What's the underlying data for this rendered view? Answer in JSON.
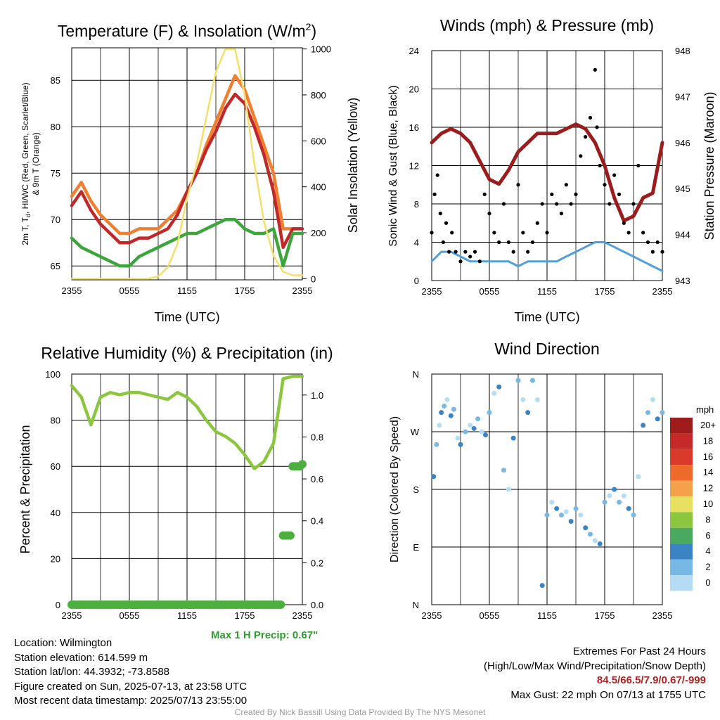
{
  "chart_data": [
    {
      "id": "temperature",
      "type": "line",
      "title": "Temperature (F) & Insolation (W/m",
      "title_sup": "2",
      "title_end": ")",
      "xlabel": "Time (UTC)",
      "ylabel_left_lines": [
        "2m T, T",
        "d",
        ", HI/WC (Red, Green, Scarlet/Blue)",
        "& 9m T (Orange)"
      ],
      "ylabel_right": "Solar Insolation (Yellow)",
      "xticks": [
        "2355",
        "0555",
        "1155",
        "1755",
        "2355"
      ],
      "ylim_left": [
        63.5,
        88.5
      ],
      "yticks_left": [
        65,
        70,
        75,
        80,
        85
      ],
      "ylim_right": [
        -5,
        1005
      ],
      "yticks_right": [
        0,
        200,
        400,
        600,
        800,
        1000
      ],
      "x_hours": [
        0,
        1,
        2,
        3,
        4,
        5,
        6,
        7,
        8,
        9,
        10,
        11,
        12,
        13,
        14,
        15,
        16,
        17,
        18,
        19,
        20,
        21,
        22,
        23,
        24
      ],
      "series": [
        {
          "color": "#f08030",
          "values": [
            72.5,
            74,
            72,
            70.5,
            69.5,
            68.5,
            68.5,
            69,
            69,
            69,
            70,
            71,
            73,
            75,
            78,
            80.5,
            83,
            85.5,
            84,
            81,
            78,
            75,
            69,
            69,
            69
          ]
        },
        {
          "color": "#c0282a",
          "values": [
            71.5,
            73,
            71,
            69.5,
            68.5,
            67.5,
            67.5,
            68,
            68,
            68.5,
            69,
            70.5,
            73,
            75,
            77.5,
            79.5,
            82,
            83.5,
            82.5,
            80,
            77,
            73,
            67,
            69,
            69
          ]
        },
        {
          "color": "#3ca63c",
          "values": [
            68,
            67,
            66.5,
            66,
            65.5,
            65,
            65,
            66,
            66.5,
            67,
            67.5,
            68,
            68.5,
            68.5,
            69,
            69.5,
            70,
            70,
            69,
            68.5,
            68.5,
            69,
            65,
            68.5,
            68.5
          ]
        },
        {
          "color": "#f5df6b",
          "values": [
            0,
            0,
            0,
            0,
            0,
            0,
            0,
            0,
            0,
            10,
            50,
            150,
            350,
            500,
            700,
            900,
            1000,
            1000,
            800,
            500,
            250,
            100,
            30,
            15,
            15
          ]
        }
      ]
    },
    {
      "id": "winds",
      "type": "scatter",
      "title": "Winds (mph) & Pressure (mb)",
      "xlabel": "Time (UTC)",
      "ylabel_left": "Sonic Wind & Gust (Blue, Black)",
      "ylabel_right": "Station Pressure (Maroon)",
      "xticks": [
        "2355",
        "0555",
        "1155",
        "1755",
        "2355"
      ],
      "ylim_left": [
        0,
        24
      ],
      "yticks_left": [
        0,
        4,
        8,
        12,
        16,
        20,
        24
      ],
      "ylim_right": [
        943,
        948
      ],
      "yticks_right": [
        943,
        944,
        945,
        946,
        947,
        948
      ],
      "x_hours": [
        0,
        1,
        2,
        3,
        4,
        5,
        6,
        7,
        8,
        9,
        10,
        11,
        12,
        13,
        14,
        15,
        16,
        17,
        18,
        19,
        20,
        21,
        22,
        23,
        24
      ],
      "series": [
        {
          "color": "#9b1c1c",
          "values": [
            946.0,
            946.2,
            946.3,
            946.2,
            946.0,
            945.6,
            945.2,
            945.1,
            945.4,
            945.8,
            946.0,
            946.2,
            946.2,
            946.2,
            946.3,
            946.4,
            946.3,
            946.0,
            945.5,
            944.8,
            944.3,
            944.4,
            944.8,
            944.9,
            946.0
          ]
        },
        {
          "color": "#4f9fd9",
          "values": [
            2,
            3,
            3,
            2.5,
            2,
            2,
            2,
            2,
            2,
            1.5,
            2,
            2,
            2,
            2,
            2.5,
            3,
            3.5,
            4,
            4,
            3.5,
            3,
            2.5,
            2,
            1.5,
            1
          ]
        }
      ],
      "gusts": [
        [
          0,
          5
        ],
        [
          0.3,
          9
        ],
        [
          0.6,
          11
        ],
        [
          0.9,
          7
        ],
        [
          1.2,
          4
        ],
        [
          1.5,
          6
        ],
        [
          1.8,
          3
        ],
        [
          2.1,
          5
        ],
        [
          2.5,
          3
        ],
        [
          3,
          2
        ],
        [
          3.5,
          3
        ],
        [
          4,
          2.5
        ],
        [
          4.5,
          3
        ],
        [
          5,
          2
        ],
        [
          5.5,
          9
        ],
        [
          6,
          7
        ],
        [
          6.5,
          5
        ],
        [
          7,
          4
        ],
        [
          7.5,
          8
        ],
        [
          8,
          4
        ],
        [
          8.5,
          3
        ],
        [
          9,
          10
        ],
        [
          9.5,
          5
        ],
        [
          10,
          3
        ],
        [
          10.5,
          4
        ],
        [
          11,
          6
        ],
        [
          11.5,
          8
        ],
        [
          12,
          5
        ],
        [
          12.5,
          9
        ],
        [
          13,
          8
        ],
        [
          13.5,
          7
        ],
        [
          14,
          10
        ],
        [
          14.5,
          8
        ],
        [
          15,
          9
        ],
        [
          15.5,
          13
        ],
        [
          16,
          15
        ],
        [
          16.5,
          17
        ],
        [
          17,
          22
        ],
        [
          17.2,
          16
        ],
        [
          17.5,
          12
        ],
        [
          18,
          10
        ],
        [
          18.5,
          8
        ],
        [
          19,
          11
        ],
        [
          19.5,
          9
        ],
        [
          20,
          6
        ],
        [
          20.5,
          5
        ],
        [
          21,
          8
        ],
        [
          21.5,
          12
        ],
        [
          22,
          5
        ],
        [
          22.5,
          4
        ],
        [
          23,
          3
        ],
        [
          23.5,
          4
        ],
        [
          24,
          3
        ]
      ]
    },
    {
      "id": "humidity",
      "type": "line",
      "title": "Relative Humidity (%) & Precipitation (in)",
      "ylabel_left": "Percent & Precipitation",
      "xticks": [
        "2355",
        "0555",
        "1155",
        "1755",
        "2355"
      ],
      "ylim_left": [
        0,
        100
      ],
      "yticks_left": [
        0,
        20,
        40,
        60,
        80,
        100
      ],
      "ylim_right": [
        0,
        1.1
      ],
      "yticks_right": [
        "0.0",
        "0.2",
        "0.4",
        "0.6",
        "0.8",
        "1.0"
      ],
      "x_hours": [
        0,
        1,
        2,
        3,
        4,
        5,
        6,
        7,
        8,
        9,
        10,
        11,
        12,
        13,
        14,
        15,
        16,
        17,
        18,
        19,
        20,
        21,
        22,
        23,
        24
      ],
      "series": [
        {
          "color": "#8cc63f",
          "values": [
            95,
            90,
            78,
            90,
            92,
            91,
            92,
            92,
            91,
            90,
            89,
            92,
            90,
            86,
            80,
            75,
            73,
            70,
            65,
            59,
            62,
            70,
            98,
            99,
            99
          ]
        }
      ],
      "precip_values": [
        0,
        0,
        0,
        0,
        0,
        0,
        0,
        0,
        0,
        0,
        0,
        0,
        0,
        0,
        0,
        0,
        0,
        0,
        0,
        0,
        0,
        0,
        0.33,
        0.66,
        0.67
      ],
      "precip_color": "#4caf3f",
      "note": "Max 1 H Precip: 0.67\""
    },
    {
      "id": "direction",
      "type": "scatter",
      "title": "Wind Direction",
      "ylabel_left": "Direction (Colored By Speed)",
      "xticks": [
        "2355",
        "0555",
        "1155",
        "1755",
        "2355"
      ],
      "yticks_left": [
        "N",
        "E",
        "S",
        "W",
        "N"
      ],
      "ylim_left": [
        0,
        360
      ],
      "colorbar_title": "mph",
      "colorbar_levels": [
        "20+",
        "18",
        "16",
        "14",
        "12",
        "10",
        "8",
        "6",
        "4",
        "2",
        "0"
      ],
      "colorbar_colors": [
        "#9e1c1c",
        "#c42a2a",
        "#d93a2a",
        "#ee6a2a",
        "#f5a04a",
        "#e8e060",
        "#8cc63f",
        "#4aa860",
        "#3a84c4",
        "#78b8e4",
        "#b6dcf4"
      ],
      "points": [
        [
          0.2,
          200
        ],
        [
          0.5,
          250
        ],
        [
          0.8,
          280
        ],
        [
          1,
          300
        ],
        [
          1.3,
          310
        ],
        [
          1.6,
          320
        ],
        [
          2,
          295
        ],
        [
          2.3,
          305
        ],
        [
          2.7,
          260
        ],
        [
          3,
          250
        ],
        [
          3.5,
          270
        ],
        [
          4,
          280
        ],
        [
          4.4,
          275
        ],
        [
          4.8,
          290
        ],
        [
          5.2,
          270
        ],
        [
          5.6,
          265
        ],
        [
          6,
          300
        ],
        [
          6.5,
          330
        ],
        [
          7,
          340
        ],
        [
          7.5,
          210
        ],
        [
          8,
          180
        ],
        [
          8.5,
          260
        ],
        [
          9,
          350
        ],
        [
          9.5,
          320
        ],
        [
          10,
          300
        ],
        [
          10.5,
          350
        ],
        [
          11,
          320
        ],
        [
          11.5,
          30
        ],
        [
          12,
          140
        ],
        [
          12.5,
          160
        ],
        [
          13,
          150
        ],
        [
          13.5,
          140
        ],
        [
          14,
          145
        ],
        [
          14.5,
          130
        ],
        [
          15,
          150
        ],
        [
          15.5,
          140
        ],
        [
          16,
          120
        ],
        [
          16.5,
          110
        ],
        [
          17,
          100
        ],
        [
          17.5,
          95
        ],
        [
          18,
          160
        ],
        [
          18.5,
          170
        ],
        [
          19,
          180
        ],
        [
          19.5,
          160
        ],
        [
          20,
          170
        ],
        [
          20.5,
          150
        ],
        [
          21,
          140
        ],
        [
          21.5,
          200
        ],
        [
          22,
          280
        ],
        [
          22.5,
          300
        ],
        [
          23,
          320
        ],
        [
          23.5,
          290
        ],
        [
          24,
          300
        ]
      ]
    }
  ],
  "info": {
    "location": "Location: Wilmington",
    "elevation": "Station elevation: 614.599 m",
    "latlon": "Station lat/lon: 44.3932; -73.8588",
    "created": "Figure created on Sun, 2025-07-13, at 23:58 UTC",
    "recent": "Most recent data timestamp: 2025/07/13 23:55:00"
  },
  "extremes": {
    "title": "Extremes For Past 24 Hours",
    "subtitle": "(High/Low/Max Wind/Precipitation/Snow Depth)",
    "values": "84.5/66.5/7.9/0.67/-999",
    "gust": "Max Gust: 22 mph On 07/13 at 1755 UTC"
  },
  "credit": "Created By Nick Bassill Using Data Provided By The NYS Mesonet"
}
